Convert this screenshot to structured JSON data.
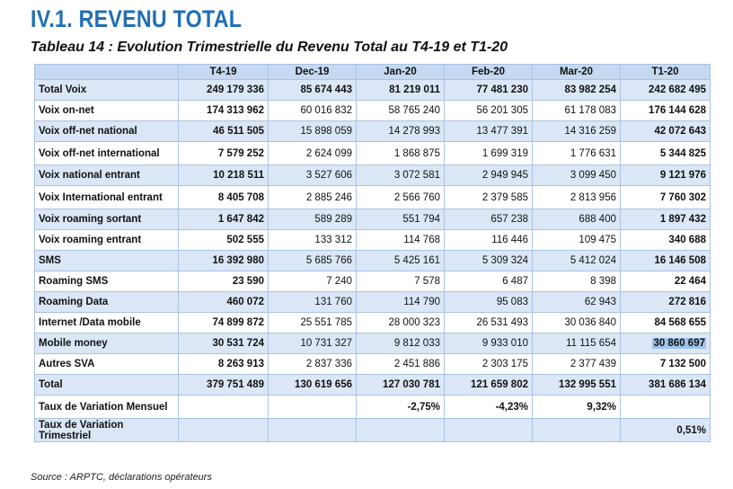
{
  "heading": "IV.1.  REVENU TOTAL",
  "subtitle": "Tableau 14 : Evolution Trimestrielle du Revenu Total au  T4-19 et T1-20",
  "columns": [
    "",
    "T4-19",
    "Dec-19",
    "Jan-20",
    "Feb-20",
    "Mar-20",
    "T1-20"
  ],
  "rows": [
    {
      "label": "Total  Voix",
      "values": [
        "249 179 336",
        "85 674 443",
        "81 219 011",
        "77 481 230",
        "83 982 254",
        "242 682 495"
      ]
    },
    {
      "label": "Voix on-net",
      "values": [
        "174 313 962",
        "60 016 832",
        "58 765 240",
        "56 201 305",
        "61 178 083",
        "176 144 628"
      ]
    },
    {
      "label": " Voix off-net national",
      "values": [
        "46 511 505",
        "15 898 059",
        "14 278 993",
        "13 477 391",
        "14 316 259",
        "42 072 643"
      ]
    },
    {
      "label": "Voix off-net international",
      "values": [
        "7 579 252",
        "2 624 099",
        "1 868 875",
        "1 699 319",
        "1 776 631",
        "5 344 825"
      ]
    },
    {
      "label": "Voix  national entrant",
      "values": [
        "10 218 511",
        "3 527 606",
        "3 072 581",
        "2 949 945",
        "3 099 450",
        "9 121 976"
      ]
    },
    {
      "label": "Voix International entrant",
      "values": [
        "8 405 708",
        "2 885 246",
        "2 566 760",
        "2 379 585",
        "2 813 956",
        "7 760 302"
      ]
    },
    {
      "label": "Voix roaming sortant",
      "values": [
        "1 647 842",
        "589 289",
        "551 794",
        "657 238",
        "688 400",
        "1 897 432"
      ]
    },
    {
      "label": "Voix roaming entrant",
      "values": [
        "502 555",
        "133 312",
        "114 768",
        "116 446",
        "109 475",
        "340 688"
      ]
    },
    {
      "label": "SMS",
      "values": [
        "16 392 980",
        "5 685 766",
        "5 425 161",
        "5 309 324",
        "5 412 024",
        "16 146 508"
      ]
    },
    {
      "label": "Roaming SMS",
      "values": [
        "23 590",
        "7 240",
        "7 578",
        "6 487",
        "8 398",
        "22 464"
      ]
    },
    {
      "label": "Roaming Data",
      "values": [
        "460 072",
        "131 760",
        "114 790",
        "95 083",
        "62 943",
        "272 816"
      ]
    },
    {
      "label": "Internet /Data mobile",
      "values": [
        "74 899 872",
        "25 551 785",
        "28 000 323",
        "26 531 493",
        "30 036 840",
        "84 568 655"
      ]
    },
    {
      "label": "Mobile money",
      "values": [
        "30 531 724",
        "10 731 327",
        "9 812 033",
        "9 933 010",
        "11 115 654",
        "30 860 697"
      ]
    },
    {
      "label": "Autres SVA",
      "values": [
        "8 263 913",
        "2 837 336",
        "2 451 886",
        "2 303 175",
        "2 377 439",
        "7 132 500"
      ]
    },
    {
      "label": "Total",
      "values": [
        "379 751 489",
        "130 619 656",
        "127 030 781",
        "121 659 802",
        "132 995 551",
        "381 686 134"
      ]
    },
    {
      "label": "Taux de Variation Mensuel",
      "values": [
        "",
        "",
        "-2,75%",
        "-4,23%",
        "9,32%",
        ""
      ]
    },
    {
      "label": "Taux de Variation Trimestriel",
      "values": [
        "",
        "",
        "",
        "",
        "",
        "0,51%"
      ]
    }
  ],
  "source": "Source : ARPTC, déclarations opérateurs"
}
